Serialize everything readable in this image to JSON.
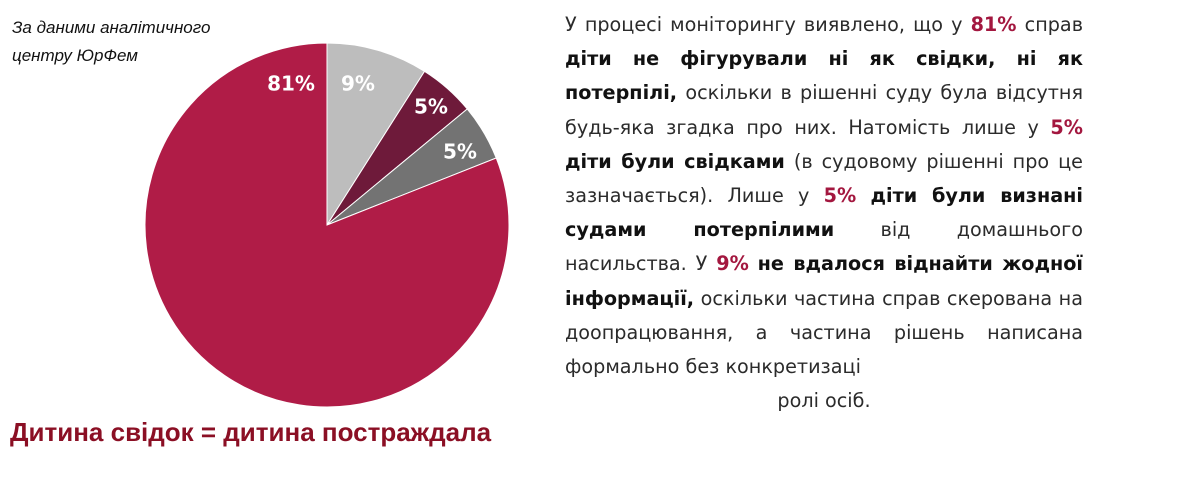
{
  "source_note": {
    "line1": "За даними аналітичного",
    "line2": "центру ЮрФем"
  },
  "bottom_title": "Дитина свідок = дитина постраждала",
  "chart_data": {
    "type": "pie",
    "title": "",
    "slices": [
      {
        "label": "81%",
        "value": 81,
        "color": "#b01c47"
      },
      {
        "label": "9%",
        "value": 9,
        "color": "#bdbdbd"
      },
      {
        "label": "5%",
        "value": 5,
        "color": "#6e1a3a"
      },
      {
        "label": "5%",
        "value": 5,
        "color": "#737373"
      }
    ],
    "order": "clockwise-from-top: 9%, 5%, 5%, then 81%"
  },
  "text": {
    "p1": "У процесі моніторингу виявлено, що у",
    "pct1": "81%",
    "p2": "справ",
    "b1": "діти не фігурували ні як свідки, ні як потерпілі,",
    "p3": "оскільки в рішенні суду була відсутня будь-яка згадка про них.  Натомість лише у",
    "pct2": "5%",
    "b2": "діти були свідками",
    "p4": "(в судовому рішенні про це зазначається). Лише у",
    "pct3": "5%",
    "b3": "діти були визнані судами потерпілими",
    "p5": "від домашнього насильства. У",
    "pct4": "9%",
    "b4": "не вдалося віднайти жодної інформації,",
    "p6": "оскільки частина справ скерована на доопрацювання, а частина рішень написана формально без конкретизаці",
    "p7": "ролі осіб."
  }
}
